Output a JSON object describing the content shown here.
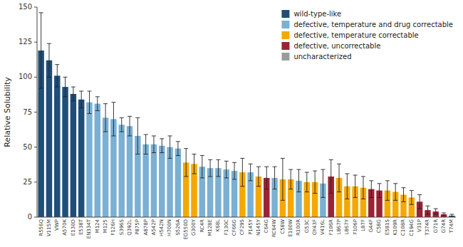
{
  "chart_data": {
    "type": "bar",
    "categories": [
      "R556Q",
      "V115M",
      "VWP",
      "A570K",
      "E130D",
      "E538T",
      "EN334T",
      "M124",
      "M125",
      "F126H",
      "S396S",
      "Q392L",
      "P875P",
      "A878P",
      "A542P",
      "H542N",
      "H700N",
      "S526A",
      "EG550D",
      "G300Y",
      "RC4R",
      "M128E",
      "K68L",
      "F130C",
      "CF66G",
      "CF29S",
      "P145Y",
      "N145Y",
      "C64G",
      "RC64W",
      "C58W",
      "E100W",
      "R100R",
      "G53C",
      "GY43F",
      "V416L",
      "F106R",
      "L867P",
      "L867Y",
      "F106P",
      "L87F",
      "G44F",
      "C58G",
      "E581S",
      "K109R",
      "C108R",
      "C194G",
      "V31P",
      "T374R",
      "G71R",
      "G74R",
      "T74M"
    ],
    "values": [
      119,
      112,
      101,
      93,
      88,
      84,
      82,
      81,
      71,
      70,
      66,
      65,
      58,
      52,
      52,
      51,
      50,
      49,
      39,
      38,
      36,
      35,
      35,
      34,
      33,
      32,
      32,
      29,
      28,
      28,
      27,
      27,
      26,
      25,
      25,
      24,
      29,
      28,
      22,
      22,
      21,
      20,
      19,
      19,
      18,
      16,
      14,
      11,
      5,
      4,
      2,
      1
    ],
    "errors": [
      27,
      12,
      8,
      7,
      5,
      6,
      8,
      5,
      10,
      12,
      5,
      7,
      13,
      7,
      6,
      5,
      8,
      5,
      10,
      7,
      8,
      6,
      6,
      6,
      6,
      10,
      6,
      7,
      8,
      8,
      15,
      7,
      8,
      7,
      8,
      10,
      12,
      10,
      9,
      8,
      8,
      6,
      5,
      7,
      6,
      5,
      5,
      5,
      3,
      2,
      1,
      1
    ],
    "colors": [
      "#1f4e79",
      "#1f4e79",
      "#1f4e79",
      "#1f4e79",
      "#1f4e79",
      "#1f4e79",
      "#7ab0d4",
      "#7ab0d4",
      "#7ab0d4",
      "#7ab0d4",
      "#7ab0d4",
      "#7ab0d4",
      "#7ab0d4",
      "#7ab0d4",
      "#7ab0d4",
      "#7ab0d4",
      "#7ab0d4",
      "#7ab0d4",
      "#f5a800",
      "#f5a800",
      "#7ab0d4",
      "#7ab0d4",
      "#7ab0d4",
      "#7ab0d4",
      "#7ab0d4",
      "#f5a800",
      "#7ab0d4",
      "#f5a800",
      "#9b2335",
      "#7ab0d4",
      "#f5a800",
      "#f5a800",
      "#7ab0d4",
      "#f5a800",
      "#f5a800",
      "#7ab0d4",
      "#9b2335",
      "#f5a800",
      "#f5a800",
      "#f5a800",
      "#f5a800",
      "#9b2335",
      "#9b2335",
      "#f5a800",
      "#f5a800",
      "#f5a800",
      "#f5a800",
      "#9b2335",
      "#9b2335",
      "#9b2335",
      "#9b2335",
      "#1f4e79"
    ],
    "ylabel": "Relative Solubility",
    "ylim": [
      0,
      150
    ],
    "yticks": [
      0,
      25,
      50,
      75,
      100,
      125,
      150
    ],
    "grid": false,
    "legend": "upper right",
    "legend_labels": [
      "wild-type-like",
      "defective, temperature and drug correctable",
      "defective, temperature correctable",
      "defective, uncorrectable",
      "uncharacterized"
    ],
    "legend_colors": [
      "#1f4e79",
      "#7ab0d4",
      "#f5a800",
      "#9b2335",
      "#9b9b9b"
    ]
  }
}
